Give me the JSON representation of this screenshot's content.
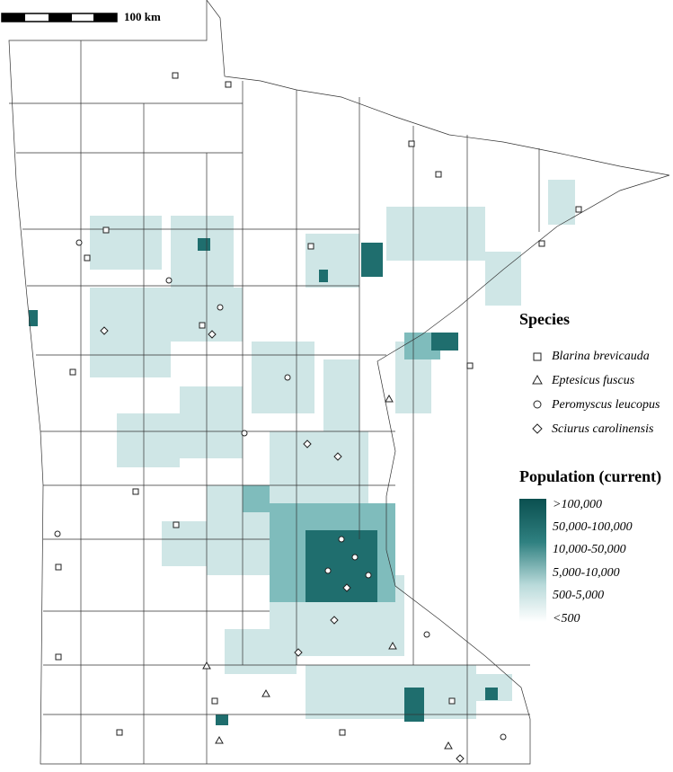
{
  "scale_bar": {
    "label": "100 km"
  },
  "legend": {
    "species": {
      "title": "Species",
      "items": [
        "Blarina brevicauda",
        "Eptesicus fuscus",
        "Peromyscus leucopus",
        "Sciurus carolinensis"
      ]
    },
    "population": {
      "title": "Population (current)",
      "items": [
        ">100,000",
        "50,000-100,000",
        "10,000-50,000",
        "5,000-10,000",
        "500-5,000",
        "<500"
      ]
    }
  }
}
